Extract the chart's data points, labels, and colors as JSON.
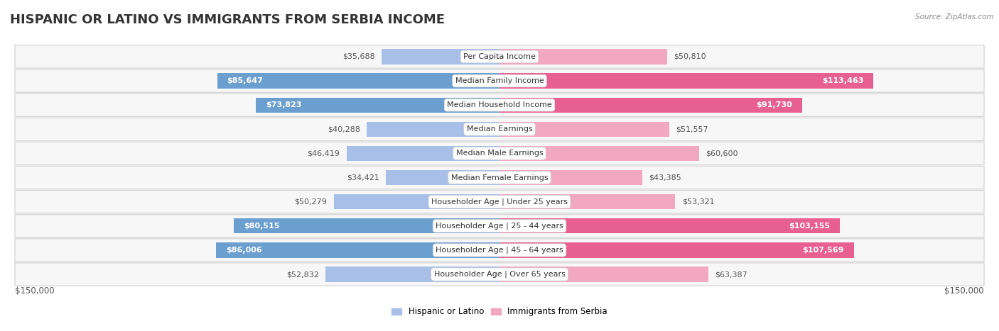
{
  "title": "HISPANIC OR LATINO VS IMMIGRANTS FROM SERBIA INCOME",
  "source": "Source: ZipAtlas.com",
  "categories": [
    "Per Capita Income",
    "Median Family Income",
    "Median Household Income",
    "Median Earnings",
    "Median Male Earnings",
    "Median Female Earnings",
    "Householder Age | Under 25 years",
    "Householder Age | 25 - 44 years",
    "Householder Age | 45 - 64 years",
    "Householder Age | Over 65 years"
  ],
  "hispanic_values": [
    35688,
    85647,
    73823,
    40288,
    46419,
    34421,
    50279,
    80515,
    86006,
    52832
  ],
  "serbia_values": [
    50810,
    113463,
    91730,
    51557,
    60600,
    43385,
    53321,
    103155,
    107569,
    63387
  ],
  "hispanic_labels": [
    "$35,688",
    "$85,647",
    "$73,823",
    "$40,288",
    "$46,419",
    "$34,421",
    "$50,279",
    "$80,515",
    "$86,006",
    "$52,832"
  ],
  "serbia_labels": [
    "$50,810",
    "$113,463",
    "$91,730",
    "$51,557",
    "$60,600",
    "$43,385",
    "$53,321",
    "$103,155",
    "$107,569",
    "$63,387"
  ],
  "hispanic_color_light": "#a8c0e8",
  "hispanic_color_dark": "#6b9fcf",
  "serbia_color_light": "#f2a8c0",
  "serbia_color_dark": "#e86090",
  "hispanic_dark_threshold": 70000,
  "serbia_dark_threshold": 90000,
  "max_value": 150000,
  "xlabel_left": "$150,000",
  "xlabel_right": "$150,000",
  "legend_hispanic": "Hispanic or Latino",
  "legend_serbia": "Immigrants from Serbia",
  "background_color": "#ffffff",
  "row_bg_color": "#f7f7f7",
  "row_border_color": "#d8d8d8",
  "title_fontsize": 13,
  "label_fontsize": 8,
  "category_fontsize": 8,
  "bar_height": 0.62
}
